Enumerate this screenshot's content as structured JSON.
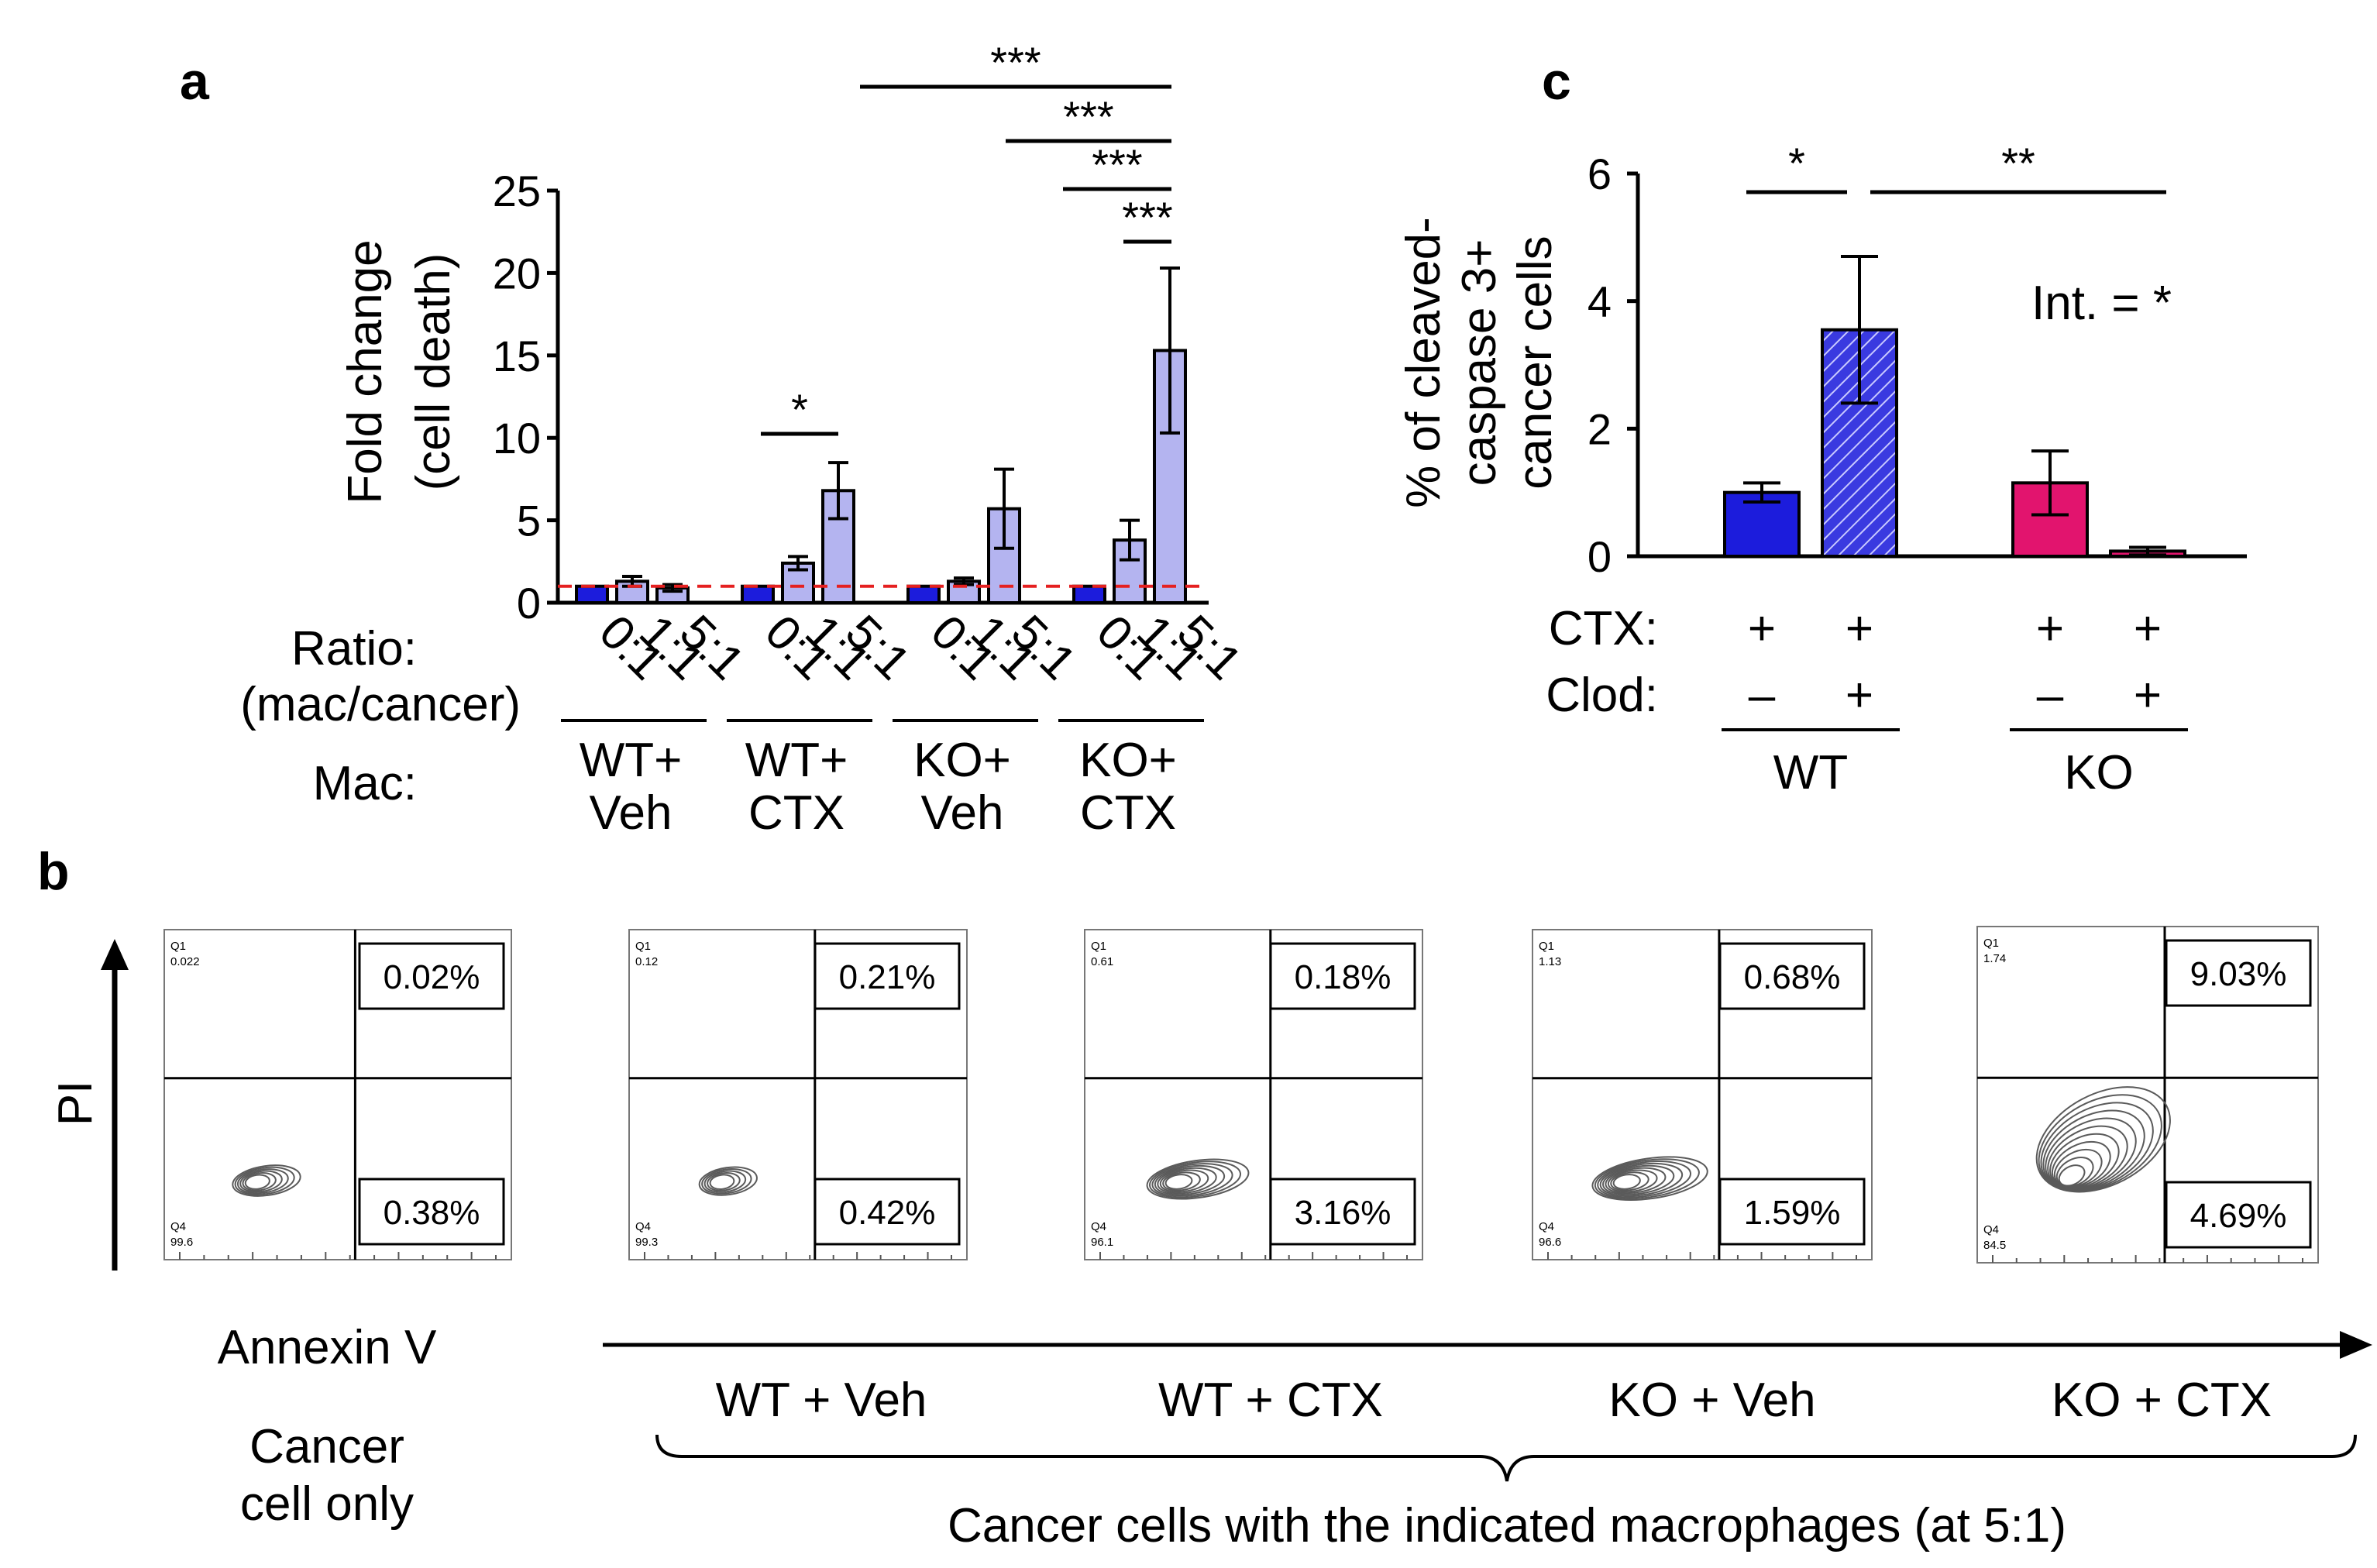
{
  "panel_labels": {
    "a": "a",
    "b": "b",
    "c": "c"
  },
  "colors": {
    "wt_blue": "#1c1cdc",
    "lavender": "#b4b4f0",
    "ko_pink": "#e2146e",
    "ref_line": "#e52020",
    "hatch_fill": "#3a3ae0"
  },
  "chart_data": [
    {
      "id": "panel_a",
      "type": "bar",
      "ylabel_line1": "Fold change",
      "ylabel_line2": "(cell death)",
      "ylim": [
        0,
        25
      ],
      "yticks": [
        "0",
        "5",
        "10",
        "15",
        "20",
        "25"
      ],
      "reference_line": 1,
      "ratio_label": "Ratio:",
      "ratio_sub_label": "(mac/cancer)",
      "mac_label": "Mac:",
      "ratio_ticks": [
        "0:1",
        "1:1",
        "5:1"
      ],
      "groups": [
        {
          "line1": "WT+",
          "line2": "Veh",
          "values": [
            1.0,
            1.3,
            0.9
          ],
          "errors": [
            0.05,
            0.3,
            0.2
          ]
        },
        {
          "line1": "WT+",
          "line2": "CTX",
          "values": [
            1.0,
            2.4,
            6.8
          ],
          "errors": [
            0.05,
            0.4,
            1.7
          ]
        },
        {
          "line1": "KO+",
          "line2": "Veh",
          "values": [
            1.0,
            1.3,
            5.7
          ],
          "errors": [
            0.05,
            0.2,
            2.4
          ]
        },
        {
          "line1": "KO+",
          "line2": "CTX",
          "values": [
            1.0,
            3.8,
            15.3
          ],
          "errors": [
            0.05,
            1.2,
            5.0
          ]
        }
      ],
      "significance": [
        {
          "label": "*"
        },
        {
          "label": "***"
        },
        {
          "label": "***"
        },
        {
          "label": "***"
        },
        {
          "label": "***"
        }
      ]
    },
    {
      "id": "panel_c",
      "type": "bar",
      "ylabel_line1": "% of cleaved-",
      "ylabel_line2": "caspase 3+",
      "ylabel_line3": "cancer cells",
      "ylim": [
        0,
        6
      ],
      "yticks": [
        "0",
        "2",
        "4",
        "6"
      ],
      "ctx_label": "CTX:",
      "clod_label": "Clod:",
      "annotation": "Int. = *",
      "bars": [
        {
          "group": "WT",
          "ctx": "+",
          "clod": "–",
          "value": 1.0,
          "error": 0.15,
          "color": "#1c1cdc",
          "hatched": false
        },
        {
          "group": "WT",
          "ctx": "+",
          "clod": "+",
          "value": 3.55,
          "error": 1.15,
          "color": "#3a3ae0",
          "hatched": true
        },
        {
          "group": "KO",
          "ctx": "+",
          "clod": "–",
          "value": 1.15,
          "error": 0.5,
          "color": "#e2146e",
          "hatched": false
        },
        {
          "group": "KO",
          "ctx": "+",
          "clod": "+",
          "value": 0.08,
          "error": 0.06,
          "color": "#e2146e",
          "hatched": false
        }
      ],
      "group_labels": [
        "WT",
        "KO"
      ],
      "significance": [
        {
          "label": "*"
        },
        {
          "label": "**"
        }
      ]
    }
  ],
  "panel_b": {
    "y_axis": "PI",
    "x_axis": "Annexin V",
    "control_line1": "Cancer",
    "control_line2": "cell only",
    "bracket_label": "Cancer cells with the indicated macrophages (at 5:1)",
    "plots": [
      {
        "condition": "",
        "upper_right": "0.02%",
        "lower_right": "0.38%",
        "q1_name": "Q1",
        "q1_value": "0.022",
        "q4_name": "Q4",
        "q4_value": "99.6",
        "spread": 1
      },
      {
        "condition": "WT + Veh",
        "upper_right": "0.21%",
        "lower_right": "0.42%",
        "q1_name": "Q1",
        "q1_value": "0.12",
        "q4_name": "Q4",
        "q4_value": "99.3",
        "spread": 0.7
      },
      {
        "condition": "WT + CTX",
        "upper_right": "0.18%",
        "lower_right": "3.16%",
        "q1_name": "Q1",
        "q1_value": "0.61",
        "q4_name": "Q4",
        "q4_value": "96.1",
        "spread": 2
      },
      {
        "condition": "KO + Veh",
        "upper_right": "0.68%",
        "lower_right": "1.59%",
        "q1_name": "Q1",
        "q1_value": "1.13",
        "q4_name": "Q4",
        "q4_value": "96.6",
        "spread": 2.4
      },
      {
        "condition": "KO + CTX",
        "upper_right": "9.03%",
        "lower_right": "4.69%",
        "q1_name": "Q1",
        "q1_value": "1.74",
        "q4_name": "Q4",
        "q4_value": "84.5",
        "spread": 3.2
      }
    ]
  }
}
